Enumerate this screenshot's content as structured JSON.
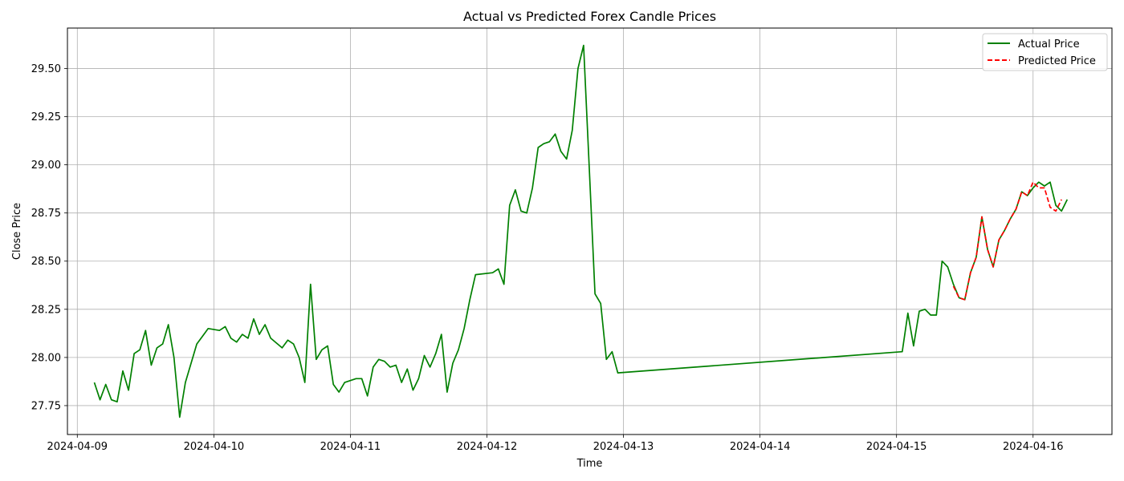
{
  "chart_data": {
    "type": "line",
    "title": "Actual vs Predicted Forex Candle Prices",
    "xlabel": "Time",
    "ylabel": "Close Price",
    "grid": true,
    "legend_placement": "top-right",
    "xlim": [
      "2024-04-08 22:16",
      "2024-04-16 13:52"
    ],
    "ylim": [
      27.6,
      29.71
    ],
    "x_ticks": [
      "2024-04-09",
      "2024-04-10",
      "2024-04-11",
      "2024-04-12",
      "2024-04-13",
      "2024-04-14",
      "2024-04-15",
      "2024-04-16"
    ],
    "y_ticks": [
      "27.75",
      "28.00",
      "28.25",
      "28.50",
      "28.75",
      "29.00",
      "29.25",
      "29.50"
    ],
    "series": [
      {
        "name": "Actual Price",
        "color": "#008000",
        "style": "solid",
        "points": [
          [
            "2024-04-09 03:00",
            27.87
          ],
          [
            "2024-04-09 04:00",
            27.78
          ],
          [
            "2024-04-09 05:00",
            27.86
          ],
          [
            "2024-04-09 06:00",
            27.78
          ],
          [
            "2024-04-09 07:00",
            27.77
          ],
          [
            "2024-04-09 08:00",
            27.93
          ],
          [
            "2024-04-09 09:00",
            27.83
          ],
          [
            "2024-04-09 10:00",
            28.02
          ],
          [
            "2024-04-09 11:00",
            28.04
          ],
          [
            "2024-04-09 12:00",
            28.14
          ],
          [
            "2024-04-09 13:00",
            27.96
          ],
          [
            "2024-04-09 14:00",
            28.05
          ],
          [
            "2024-04-09 15:00",
            28.07
          ],
          [
            "2024-04-09 16:00",
            28.17
          ],
          [
            "2024-04-09 17:00",
            28.0
          ],
          [
            "2024-04-09 18:00",
            27.69
          ],
          [
            "2024-04-09 19:00",
            27.87
          ],
          [
            "2024-04-09 20:00",
            27.97
          ],
          [
            "2024-04-09 21:00",
            28.07
          ],
          [
            "2024-04-09 23:00",
            28.15
          ],
          [
            "2024-04-10 01:00",
            28.14
          ],
          [
            "2024-04-10 02:00",
            28.16
          ],
          [
            "2024-04-10 03:00",
            28.1
          ],
          [
            "2024-04-10 04:00",
            28.08
          ],
          [
            "2024-04-10 05:00",
            28.12
          ],
          [
            "2024-04-10 06:00",
            28.1
          ],
          [
            "2024-04-10 07:00",
            28.2
          ],
          [
            "2024-04-10 08:00",
            28.12
          ],
          [
            "2024-04-10 09:00",
            28.17
          ],
          [
            "2024-04-10 10:00",
            28.1
          ],
          [
            "2024-04-10 12:00",
            28.05
          ],
          [
            "2024-04-10 13:00",
            28.09
          ],
          [
            "2024-04-10 14:00",
            28.07
          ],
          [
            "2024-04-10 15:00",
            28.0
          ],
          [
            "2024-04-10 16:00",
            27.87
          ],
          [
            "2024-04-10 17:00",
            28.38
          ],
          [
            "2024-04-10 18:00",
            27.99
          ],
          [
            "2024-04-10 19:00",
            28.04
          ],
          [
            "2024-04-10 20:00",
            28.06
          ],
          [
            "2024-04-10 21:00",
            27.86
          ],
          [
            "2024-04-10 22:00",
            27.82
          ],
          [
            "2024-04-10 23:00",
            27.87
          ],
          [
            "2024-04-11 01:00",
            27.89
          ],
          [
            "2024-04-11 02:00",
            27.89
          ],
          [
            "2024-04-11 03:00",
            27.8
          ],
          [
            "2024-04-11 04:00",
            27.95
          ],
          [
            "2024-04-11 05:00",
            27.99
          ],
          [
            "2024-04-11 06:00",
            27.98
          ],
          [
            "2024-04-11 07:00",
            27.95
          ],
          [
            "2024-04-11 08:00",
            27.96
          ],
          [
            "2024-04-11 09:00",
            27.87
          ],
          [
            "2024-04-11 10:00",
            27.94
          ],
          [
            "2024-04-11 11:00",
            27.83
          ],
          [
            "2024-04-11 12:00",
            27.89
          ],
          [
            "2024-04-11 13:00",
            28.01
          ],
          [
            "2024-04-11 14:00",
            27.95
          ],
          [
            "2024-04-11 15:00",
            28.02
          ],
          [
            "2024-04-11 16:00",
            28.12
          ],
          [
            "2024-04-11 17:00",
            27.82
          ],
          [
            "2024-04-11 18:00",
            27.97
          ],
          [
            "2024-04-11 19:00",
            28.04
          ],
          [
            "2024-04-11 20:00",
            28.15
          ],
          [
            "2024-04-11 21:00",
            28.3
          ],
          [
            "2024-04-11 22:00",
            28.43
          ],
          [
            "2024-04-12 01:00",
            28.44
          ],
          [
            "2024-04-12 02:00",
            28.46
          ],
          [
            "2024-04-12 03:00",
            28.38
          ],
          [
            "2024-04-12 04:00",
            28.79
          ],
          [
            "2024-04-12 05:00",
            28.87
          ],
          [
            "2024-04-12 06:00",
            28.76
          ],
          [
            "2024-04-12 07:00",
            28.75
          ],
          [
            "2024-04-12 08:00",
            28.88
          ],
          [
            "2024-04-12 09:00",
            29.09
          ],
          [
            "2024-04-12 10:00",
            29.11
          ],
          [
            "2024-04-12 11:00",
            29.12
          ],
          [
            "2024-04-12 12:00",
            29.16
          ],
          [
            "2024-04-12 13:00",
            29.07
          ],
          [
            "2024-04-12 14:00",
            29.03
          ],
          [
            "2024-04-12 15:00",
            29.18
          ],
          [
            "2024-04-12 16:00",
            29.5
          ],
          [
            "2024-04-12 17:00",
            29.62
          ],
          [
            "2024-04-12 18:00",
            28.98
          ],
          [
            "2024-04-12 19:00",
            28.33
          ],
          [
            "2024-04-12 20:00",
            28.28
          ],
          [
            "2024-04-12 21:00",
            27.99
          ],
          [
            "2024-04-12 22:00",
            28.03
          ],
          [
            "2024-04-12 23:00",
            27.92
          ],
          [
            "2024-04-15 01:00",
            28.03
          ],
          [
            "2024-04-15 02:00",
            28.23
          ],
          [
            "2024-04-15 03:00",
            28.06
          ],
          [
            "2024-04-15 04:00",
            28.24
          ],
          [
            "2024-04-15 05:00",
            28.25
          ],
          [
            "2024-04-15 06:00",
            28.22
          ],
          [
            "2024-04-15 07:00",
            28.22
          ],
          [
            "2024-04-15 08:00",
            28.5
          ],
          [
            "2024-04-15 09:00",
            28.47
          ],
          [
            "2024-04-15 10:00",
            28.38
          ],
          [
            "2024-04-15 11:00",
            28.31
          ],
          [
            "2024-04-15 12:00",
            28.3
          ],
          [
            "2024-04-15 13:00",
            28.44
          ],
          [
            "2024-04-15 14:00",
            28.52
          ],
          [
            "2024-04-15 15:00",
            28.73
          ],
          [
            "2024-04-15 16:00",
            28.56
          ],
          [
            "2024-04-15 17:00",
            28.47
          ],
          [
            "2024-04-15 18:00",
            28.61
          ],
          [
            "2024-04-15 19:00",
            28.66
          ],
          [
            "2024-04-15 20:00",
            28.72
          ],
          [
            "2024-04-15 21:00",
            28.77
          ],
          [
            "2024-04-15 22:00",
            28.86
          ],
          [
            "2024-04-15 23:00",
            28.84
          ],
          [
            "2024-04-16 00:00",
            28.88
          ],
          [
            "2024-04-16 01:00",
            28.91
          ],
          [
            "2024-04-16 02:00",
            28.89
          ],
          [
            "2024-04-16 03:00",
            28.91
          ],
          [
            "2024-04-16 04:00",
            28.79
          ],
          [
            "2024-04-16 05:00",
            28.76
          ],
          [
            "2024-04-16 06:00",
            28.82
          ]
        ]
      },
      {
        "name": "Predicted Price",
        "color": "#ff0000",
        "style": "dashed",
        "points": [
          [
            "2024-04-15 10:00",
            28.37
          ],
          [
            "2024-04-15 11:00",
            28.31
          ],
          [
            "2024-04-15 12:00",
            28.3
          ],
          [
            "2024-04-15 13:00",
            28.44
          ],
          [
            "2024-04-15 14:00",
            28.52
          ],
          [
            "2024-04-15 15:00",
            28.73
          ],
          [
            "2024-04-15 16:00",
            28.56
          ],
          [
            "2024-04-15 17:00",
            28.47
          ],
          [
            "2024-04-15 18:00",
            28.61
          ],
          [
            "2024-04-15 19:00",
            28.66
          ],
          [
            "2024-04-15 20:00",
            28.72
          ],
          [
            "2024-04-15 21:00",
            28.77
          ],
          [
            "2024-04-15 22:00",
            28.86
          ],
          [
            "2024-04-15 23:00",
            28.84
          ],
          [
            "2024-04-16 00:00",
            28.91
          ],
          [
            "2024-04-16 01:00",
            28.88
          ],
          [
            "2024-04-16 02:00",
            28.88
          ],
          [
            "2024-04-16 03:00",
            28.78
          ],
          [
            "2024-04-16 04:00",
            28.76
          ],
          [
            "2024-04-16 05:00",
            28.82
          ]
        ]
      }
    ]
  }
}
